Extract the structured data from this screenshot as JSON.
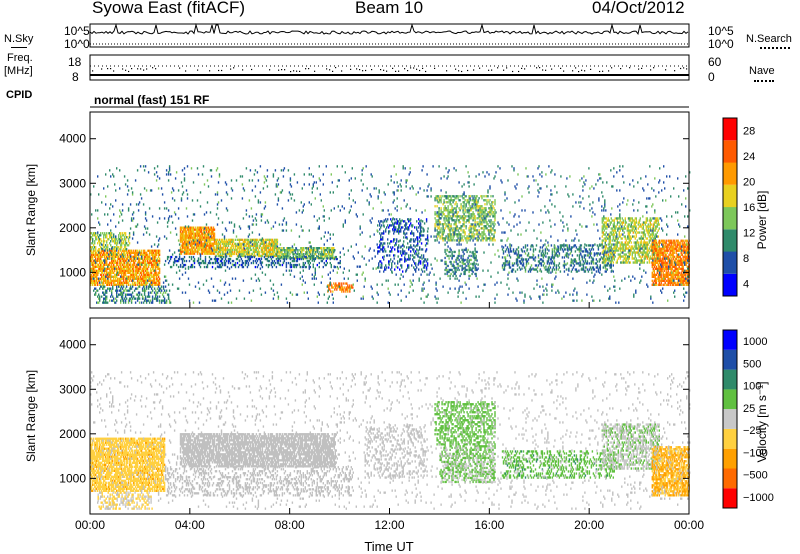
{
  "header": {
    "station": "Syowa East (fitACF)",
    "beam": "Beam 10",
    "date": "04/Oct/2012"
  },
  "side_labels": {
    "nsky": "N.Sky",
    "freq": "Freq.",
    "mhz": "[MHz]",
    "cpid": "CPID",
    "nsearch": "N.Search",
    "nave": "Nave"
  },
  "mode_text": "normal (fast) 151 RF",
  "noise_panel": {
    "left_ticks": [
      "10^5",
      "10^0"
    ],
    "right_ticks": [
      "10^5",
      "10^0"
    ]
  },
  "freq_panel": {
    "left_ticks": [
      "18",
      "8"
    ],
    "right_ticks": [
      "60",
      "0"
    ]
  },
  "colors": {
    "power_scale": [
      "#0000ff",
      "#1f4fa8",
      "#2f8a6a",
      "#7dc75a",
      "#e8d020",
      "#ff9a00",
      "#ff5a00",
      "#ff0000"
    ],
    "velocity_scale": [
      "#ff0000",
      "#ff6a00",
      "#ffa000",
      "#ffd040",
      "#c8c8c8",
      "#60c040",
      "#2f8a6a",
      "#1f4fa8",
      "#0000ff"
    ],
    "ground_scatter": "#c0c0c0"
  },
  "chart_data": [
    {
      "type": "heatmap",
      "name": "power",
      "ylabel": "Slant Range [km]",
      "xlabel": "",
      "x_ticks": [
        "00:00",
        "04:00",
        "08:00",
        "12:00",
        "16:00",
        "20:00",
        "00:00"
      ],
      "y_ticks": [
        1000,
        2000,
        3000,
        4000
      ],
      "xlim": [
        0,
        24
      ],
      "ylim": [
        200,
        4600
      ],
      "colorbar": {
        "label": "Power [dB]",
        "ticks": [
          "28",
          "24",
          "20",
          "16",
          "12",
          "8",
          "4"
        ],
        "range": [
          0,
          30
        ]
      },
      "regions": [
        {
          "t0": 0.0,
          "t1": 2.8,
          "r0": 700,
          "r1": 1500,
          "v": 20,
          "density": 0.75
        },
        {
          "t0": 0.0,
          "t1": 1.6,
          "r0": 1500,
          "r1": 1900,
          "v": 14,
          "density": 0.5
        },
        {
          "t0": 0.2,
          "t1": 3.2,
          "r0": 300,
          "r1": 700,
          "v": 9,
          "density": 0.35
        },
        {
          "t0": 3.6,
          "t1": 5.0,
          "r0": 1400,
          "r1": 2000,
          "v": 20,
          "density": 0.85
        },
        {
          "t0": 5.0,
          "t1": 7.5,
          "r0": 1350,
          "r1": 1750,
          "v": 16,
          "density": 0.75
        },
        {
          "t0": 7.5,
          "t1": 9.8,
          "r0": 1300,
          "r1": 1550,
          "v": 13,
          "density": 0.7
        },
        {
          "t0": 3.0,
          "t1": 10.0,
          "r0": 1100,
          "r1": 1350,
          "v": 7,
          "density": 0.3
        },
        {
          "t0": 9.5,
          "t1": 10.5,
          "r0": 550,
          "r1": 750,
          "v": 22,
          "density": 0.5
        },
        {
          "t0": 11.5,
          "t1": 13.5,
          "r0": 1000,
          "r1": 2200,
          "v": 6,
          "density": 0.25
        },
        {
          "t0": 13.8,
          "t1": 16.2,
          "r0": 1700,
          "r1": 2700,
          "v": 13,
          "density": 0.45
        },
        {
          "t0": 14.2,
          "t1": 15.5,
          "r0": 900,
          "r1": 1500,
          "v": 9,
          "density": 0.35
        },
        {
          "t0": 16.5,
          "t1": 21.0,
          "r0": 1000,
          "r1": 1600,
          "v": 8,
          "density": 0.3
        },
        {
          "t0": 20.5,
          "t1": 22.8,
          "r0": 1200,
          "r1": 2200,
          "v": 15,
          "density": 0.5
        },
        {
          "t0": 22.5,
          "t1": 24.0,
          "r0": 700,
          "r1": 1700,
          "v": 22,
          "density": 0.7
        },
        {
          "t0": 0.0,
          "t1": 24.0,
          "r0": 300,
          "r1": 3400,
          "v": 8,
          "density": 0.04
        }
      ]
    },
    {
      "type": "heatmap",
      "name": "velocity",
      "ylabel": "Slant Range [km]",
      "xlabel": "Time UT",
      "x_ticks": [
        "00:00",
        "04:00",
        "08:00",
        "12:00",
        "16:00",
        "20:00",
        "00:00"
      ],
      "y_ticks": [
        1000,
        2000,
        3000,
        4000
      ],
      "xlim": [
        0,
        24
      ],
      "ylim": [
        200,
        4600
      ],
      "colorbar": {
        "label": "Velocity [m s⁻¹]",
        "ticks": [
          "1000",
          "500",
          "100",
          "25",
          "−25",
          "−100",
          "−500",
          "−1000"
        ],
        "range": [
          -1200,
          1200
        ]
      },
      "regions": [
        {
          "t0": 0.0,
          "t1": 3.0,
          "r0": 700,
          "r1": 1900,
          "v": -300,
          "density": 0.75
        },
        {
          "t0": 0.3,
          "t1": 2.5,
          "r0": 300,
          "r1": 700,
          "v": -150,
          "density": 0.4
        },
        {
          "t0": 3.6,
          "t1": 9.8,
          "r0": 1250,
          "r1": 2000,
          "v": 0,
          "density": 0.75
        },
        {
          "t0": 3.0,
          "t1": 10.5,
          "r0": 600,
          "r1": 1250,
          "v": 0,
          "density": 0.25
        },
        {
          "t0": 11.0,
          "t1": 13.5,
          "r0": 1000,
          "r1": 2200,
          "v": 0,
          "density": 0.2
        },
        {
          "t0": 13.8,
          "t1": 16.2,
          "r0": 1700,
          "r1": 2700,
          "v": 250,
          "density": 0.4
        },
        {
          "t0": 14.0,
          "t1": 16.2,
          "r0": 900,
          "r1": 1700,
          "v": 150,
          "density": 0.45
        },
        {
          "t0": 16.5,
          "t1": 21.0,
          "r0": 1000,
          "r1": 1600,
          "v": 300,
          "density": 0.3
        },
        {
          "t0": 20.5,
          "t1": 22.8,
          "r0": 1200,
          "r1": 2200,
          "v": 120,
          "density": 0.5
        },
        {
          "t0": 22.5,
          "t1": 24.0,
          "r0": 600,
          "r1": 1700,
          "v": -400,
          "density": 0.7
        },
        {
          "t0": 0.0,
          "t1": 24.0,
          "r0": 300,
          "r1": 3400,
          "v": 0,
          "density": 0.04
        }
      ]
    }
  ]
}
